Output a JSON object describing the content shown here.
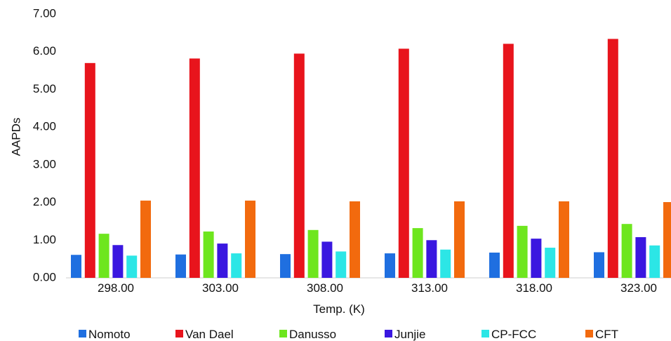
{
  "chart_data": {
    "type": "bar",
    "title": "",
    "xlabel": "Temp. (K)",
    "ylabel": "AAPDs",
    "ylim": [
      0,
      7
    ],
    "yticks": [
      "0.00",
      "1.00",
      "2.00",
      "3.00",
      "4.00",
      "5.00",
      "6.00",
      "7.00"
    ],
    "grid": false,
    "legend_position": "bottom",
    "categories": [
      "298.00",
      "303.00",
      "308.00",
      "313.00",
      "318.00",
      "323.00"
    ],
    "series": [
      {
        "name": "Nomoto",
        "color": "#1f6fe0",
        "values": [
          0.61,
          0.62,
          0.63,
          0.65,
          0.67,
          0.68
        ]
      },
      {
        "name": "Van Dael",
        "color": "#e8141c",
        "values": [
          5.7,
          5.82,
          5.95,
          6.08,
          6.21,
          6.34
        ]
      },
      {
        "name": "Danusso",
        "color": "#6ee61e",
        "values": [
          1.17,
          1.23,
          1.27,
          1.32,
          1.38,
          1.43
        ]
      },
      {
        "name": "Junjie",
        "color": "#3a17e0",
        "values": [
          0.87,
          0.91,
          0.96,
          1.0,
          1.04,
          1.08
        ]
      },
      {
        "name": "CP-FCC",
        "color": "#2ce6e6",
        "values": [
          0.59,
          0.65,
          0.7,
          0.75,
          0.8,
          0.86
        ]
      },
      {
        "name": "CFT",
        "color": "#f26a0e",
        "values": [
          2.05,
          2.05,
          2.03,
          2.03,
          2.03,
          2.01
        ]
      }
    ]
  }
}
